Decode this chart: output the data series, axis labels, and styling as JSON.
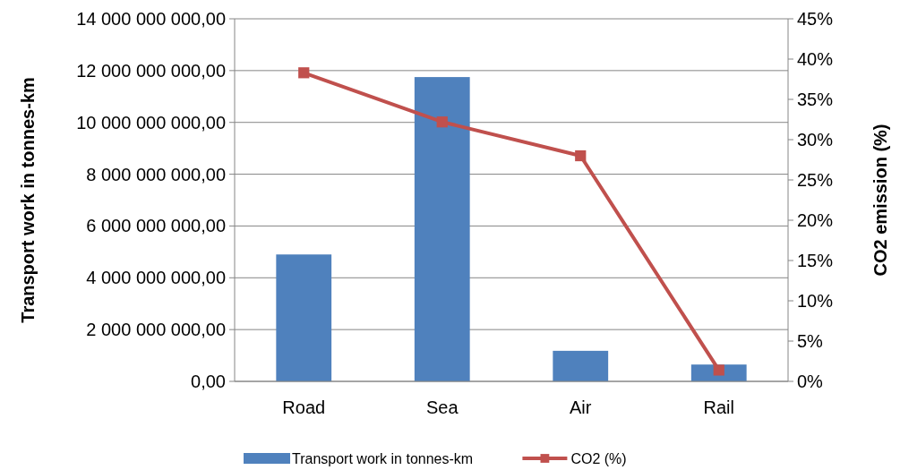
{
  "chart_data": {
    "type": "bar",
    "ylabel": "Transport work in tonnes-km",
    "y2label": "CO2 emission (%)",
    "categories": [
      "Road",
      "Sea",
      "Air",
      "Rail"
    ],
    "series": [
      {
        "name": "Transport work in tonnes-km",
        "color": "#4f81bd",
        "values": [
          4900000000,
          11750000000,
          1180000000,
          650000000
        ]
      },
      {
        "name": "CO2 (%)",
        "type": "line",
        "axis": "y2",
        "color": "#c0504d",
        "marker": "square",
        "values": [
          38.3,
          32.2,
          28,
          1.4
        ]
      }
    ],
    "ylim": [
      0,
      14000000000
    ],
    "yticks": [
      {
        "value": 0,
        "label": "0,00"
      },
      {
        "value": 2000000000,
        "label": "2 000 000 000,00"
      },
      {
        "value": 4000000000,
        "label": "4 000 000 000,00"
      },
      {
        "value": 6000000000,
        "label": "6 000 000 000,00"
      },
      {
        "value": 8000000000,
        "label": "8 000 000 000,00"
      },
      {
        "value": 10000000000,
        "label": "10 000 000 000,00"
      },
      {
        "value": 12000000000,
        "label": "12 000 000 000,00"
      },
      {
        "value": 14000000000,
        "label": "14 000 000 000,00"
      }
    ],
    "y2lim": [
      0,
      45
    ],
    "y2ticks": [
      {
        "value": 0,
        "label": "0%"
      },
      {
        "value": 5,
        "label": "5%"
      },
      {
        "value": 10,
        "label": "10%"
      },
      {
        "value": 15,
        "label": "15%"
      },
      {
        "value": 20,
        "label": "20%"
      },
      {
        "value": 25,
        "label": "25%"
      },
      {
        "value": 30,
        "label": "30%"
      },
      {
        "value": 35,
        "label": "35%"
      },
      {
        "value": 40,
        "label": "40%"
      },
      {
        "value": 45,
        "label": "45%"
      }
    ],
    "grid": "y",
    "legend": "bottom"
  }
}
